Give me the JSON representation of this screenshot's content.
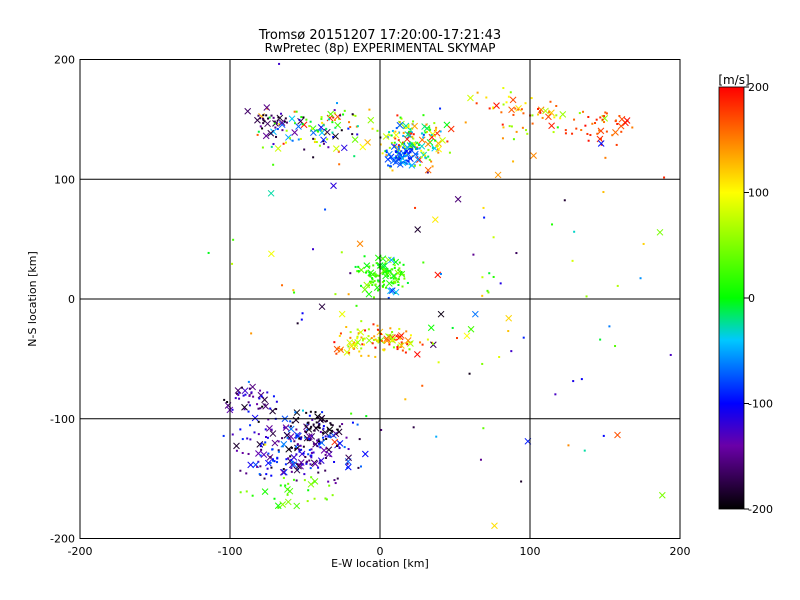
{
  "chart_data": {
    "type": "scatter",
    "title": "Tromsø 20151207 17:20:00-17:21:43",
    "subtitle": "RwPretec (8p) EXPERIMENTAL SKYMAP",
    "xlabel": "E-W location [km]",
    "ylabel": "N-S location [km]",
    "xlim": [
      -200,
      200
    ],
    "ylim": [
      -200,
      200
    ],
    "xticks": [
      "-200",
      "-100",
      "0",
      "100",
      "200"
    ],
    "yticks": [
      "-200",
      "-100",
      "0",
      "100",
      "200"
    ],
    "grid": true,
    "colorbar": {
      "unit": "[m/s]",
      "range": [
        -200,
        200
      ],
      "ticks": [
        "200",
        "100",
        "0",
        "-100",
        "-200"
      ]
    },
    "markers": [
      "dot",
      "x"
    ],
    "clusters": [
      {
        "x": 20,
        "y": 130,
        "sx": 14,
        "sy": 14,
        "n": 140,
        "v": [
          -80,
          200
        ]
      },
      {
        "x": 15,
        "y": 120,
        "sx": 7,
        "sy": 6,
        "n": 60,
        "v": [
          -100,
          -40
        ]
      },
      {
        "x": -40,
        "y": 140,
        "sx": 30,
        "sy": 15,
        "n": 110,
        "v": [
          -200,
          200
        ]
      },
      {
        "x": -75,
        "y": 148,
        "sx": 10,
        "sy": 8,
        "n": 30,
        "v": [
          -200,
          -140
        ]
      },
      {
        "x": 100,
        "y": 155,
        "sx": 28,
        "sy": 14,
        "n": 60,
        "v": [
          50,
          200
        ]
      },
      {
        "x": 150,
        "y": 140,
        "sx": 18,
        "sy": 15,
        "n": 40,
        "v": [
          150,
          200
        ]
      },
      {
        "x": 2,
        "y": 20,
        "sx": 10,
        "sy": 10,
        "n": 110,
        "v": [
          -10,
          60
        ]
      },
      {
        "x": 0,
        "y": -35,
        "sx": 20,
        "sy": 9,
        "n": 110,
        "v": [
          40,
          200
        ]
      },
      {
        "x": -55,
        "y": -125,
        "sx": 28,
        "sy": 18,
        "n": 230,
        "v": [
          -200,
          -60
        ]
      },
      {
        "x": -85,
        "y": -85,
        "sx": 12,
        "sy": 8,
        "n": 45,
        "v": [
          -200,
          -90
        ]
      },
      {
        "x": -40,
        "y": -105,
        "sx": 10,
        "sy": 8,
        "n": 40,
        "v": [
          -200,
          -180
        ]
      },
      {
        "x": -60,
        "y": -160,
        "sx": 20,
        "sy": 10,
        "n": 30,
        "v": [
          0,
          60
        ]
      },
      {
        "x": 40,
        "y": 0,
        "sx": 110,
        "sy": 110,
        "n": 120,
        "v": [
          -200,
          200
        ]
      }
    ]
  }
}
